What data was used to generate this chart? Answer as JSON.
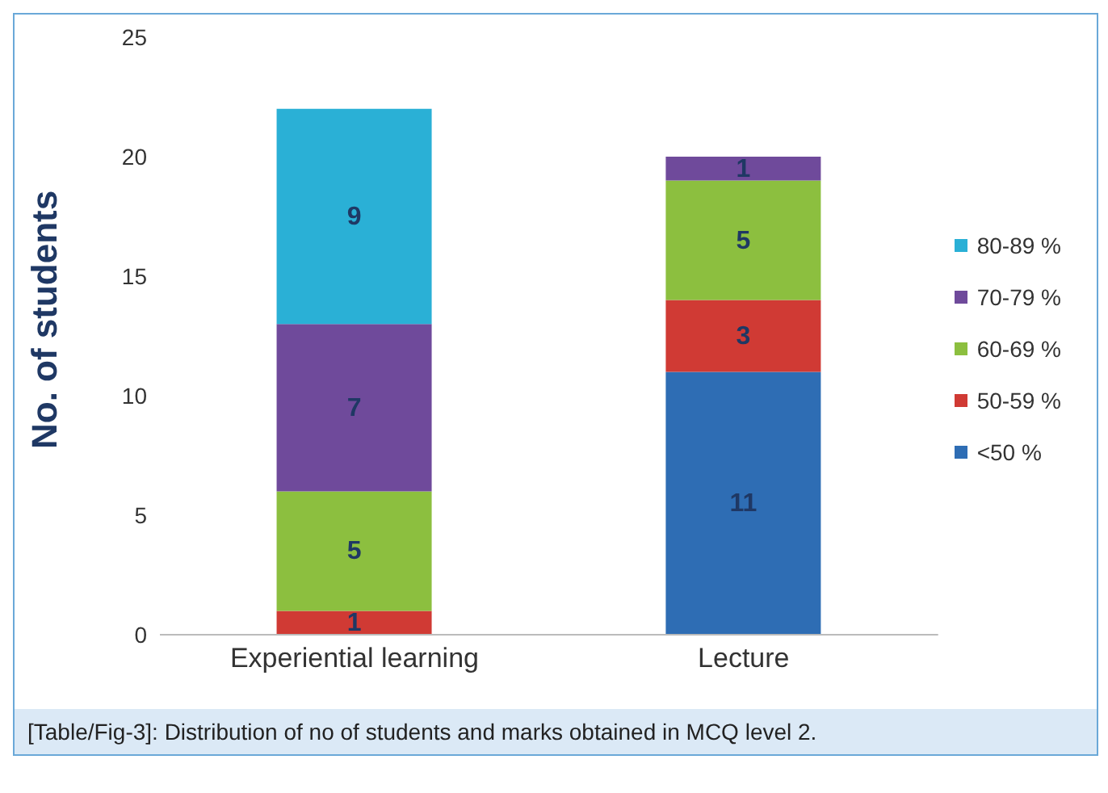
{
  "chart_data": {
    "type": "bar",
    "stacked": true,
    "ylabel": "No. of students",
    "categories": [
      "Experiential learning",
      "Lecture"
    ],
    "series": [
      {
        "name": "<50 %",
        "color": "#2e6db4",
        "values": [
          0,
          11
        ],
        "value_labels": [
          null,
          "11"
        ]
      },
      {
        "name": "50-59 %",
        "color": "#d03a34",
        "values": [
          1,
          3
        ],
        "value_labels": [
          "1",
          "3"
        ]
      },
      {
        "name": "60-69 %",
        "color": "#8cbf3f",
        "values": [
          5,
          5
        ],
        "value_labels": [
          "5",
          "5"
        ]
      },
      {
        "name": "70-79 %",
        "color": "#6f4a9b",
        "values": [
          7,
          1
        ],
        "value_labels": [
          "7",
          "1"
        ]
      },
      {
        "name": "80-89 %",
        "color": "#2ab0d6",
        "values": [
          9,
          0
        ],
        "value_labels": [
          "9",
          null
        ]
      }
    ],
    "ylim": [
      0,
      25
    ],
    "yticks": [
      0,
      5,
      10,
      15,
      20,
      25
    ],
    "grid": false,
    "legend": "right",
    "annotations": [
      "[Table/Fig-3]: Distribution of no of students and marks obtained in MCQ level 2."
    ]
  }
}
